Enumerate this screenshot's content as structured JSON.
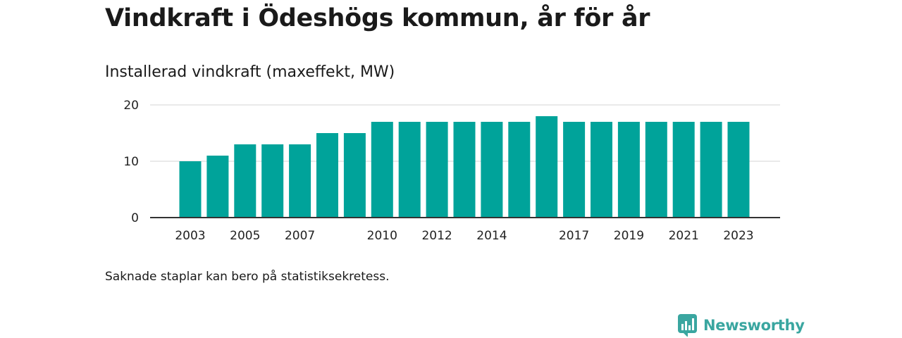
{
  "title": "Vindkraft i Ödeshögs kommun, år för år",
  "note": "Saknade staplar kan bero på statistiksekretess.",
  "brand": {
    "name": "Newsworthy",
    "icon": "newsworthy-logo-icon",
    "color": "#3aa6a0"
  },
  "chart_data": {
    "type": "bar",
    "subtitle": "Installerad vindkraft (maxeffekt, MW)",
    "categories": [
      "2003",
      "2004",
      "2005",
      "2006",
      "2007",
      "2008",
      "2009",
      "2010",
      "2011",
      "2012",
      "2013",
      "2014",
      "2015",
      "2016",
      "2017",
      "2018",
      "2019",
      "2020",
      "2021",
      "2022",
      "2023"
    ],
    "values": [
      10,
      11,
      13,
      13,
      13,
      15,
      15,
      17,
      17,
      17,
      17,
      17,
      17,
      18,
      17,
      17,
      17,
      17,
      17,
      17,
      17
    ],
    "x_tick_labels": [
      "2003",
      "2005",
      "2007",
      "2010",
      "2012",
      "2014",
      "2017",
      "2019",
      "2021",
      "2023"
    ],
    "y_ticks": [
      "0",
      "10",
      "20"
    ],
    "ylim": [
      0,
      20
    ],
    "grid": true,
    "bar_color": "#00a39a"
  }
}
